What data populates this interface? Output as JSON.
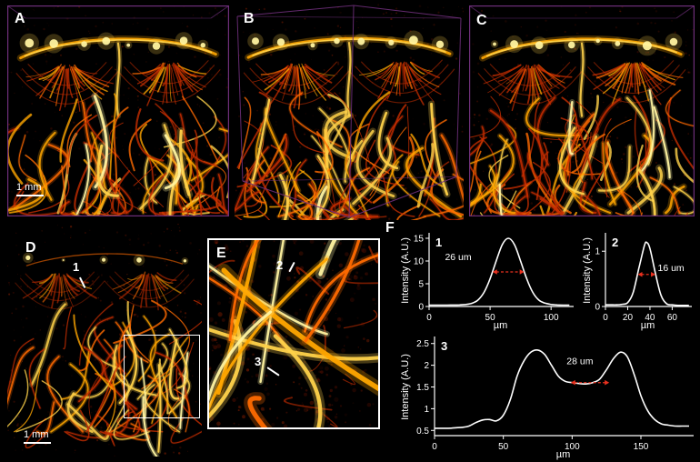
{
  "colors": {
    "background": "#000000",
    "wireframe": "#6e2f7a",
    "axis": "#ffffff",
    "curve": "#ffffff",
    "annotation": "#e8301e",
    "palette": [
      "#3a0a00",
      "#7a1500",
      "#c62d00",
      "#ff6a00",
      "#ffa600",
      "#ffd24a",
      "#fff3a0"
    ]
  },
  "figure": {
    "panel_a": {
      "label": "A",
      "scale_bar": "1 mm"
    },
    "panel_b": {
      "label": "B"
    },
    "panel_c": {
      "label": "C"
    },
    "panel_d": {
      "label": "D",
      "marker_1": "1",
      "scale_bar": "1 mm"
    },
    "panel_e": {
      "label": "E",
      "marker_2": "2",
      "marker_3": "3"
    },
    "panel_f": {
      "label": "F"
    }
  },
  "chart_data": [
    {
      "type": "line",
      "panel_label": "1",
      "xlabel": "µm",
      "ylabel": "Intensity (A.U.)",
      "xlim": [
        0,
        117
      ],
      "ylim": [
        0,
        15.8
      ],
      "xticks": [
        0,
        50,
        100
      ],
      "yticks": [
        0,
        5,
        10,
        15
      ],
      "x": [
        0,
        5,
        10,
        15,
        20,
        25,
        30,
        35,
        40,
        45,
        50,
        55,
        60,
        65,
        70,
        75,
        80,
        85,
        90,
        95,
        100,
        105,
        110,
        115
      ],
      "y": [
        0.3,
        0.3,
        0.3,
        0.3,
        0.32,
        0.35,
        0.45,
        0.7,
        1.4,
        3.1,
        6.1,
        10,
        13.6,
        15,
        13.6,
        10,
        6.1,
        3.1,
        1.4,
        0.75,
        0.45,
        0.35,
        0.3,
        0.3
      ],
      "annotation": {
        "label": "26 um",
        "x1": 52,
        "x2": 78,
        "y": 7.6,
        "label_x": 13,
        "label_y": 10.2
      }
    },
    {
      "type": "line",
      "panel_label": "2",
      "xlabel": "µm",
      "ylabel": "Intensity (A.U.)",
      "xlim": [
        0,
        76
      ],
      "ylim": [
        0,
        1.3
      ],
      "xticks": [
        0,
        20,
        40,
        60
      ],
      "yticks": [
        0,
        1
      ],
      "x": [
        0,
        5,
        10,
        15,
        20,
        25,
        30,
        35,
        37,
        40,
        45,
        50,
        55,
        60,
        65,
        70,
        75
      ],
      "y": [
        0.03,
        0.03,
        0.03,
        0.04,
        0.07,
        0.26,
        0.69,
        1.1,
        1.16,
        1.05,
        0.59,
        0.2,
        0.05,
        0.03,
        0.02,
        0.02,
        0.02
      ],
      "annotation": {
        "label": "16 um",
        "x1": 29,
        "x2": 45,
        "y": 0.58,
        "label_x": 47,
        "label_y": 0.64
      }
    },
    {
      "type": "line",
      "panel_label": "3",
      "xlabel": "µm",
      "ylabel": "Intensity (A.U.)",
      "xlim": [
        0,
        187
      ],
      "ylim": [
        0.38,
        2.62
      ],
      "xticks": [
        0,
        50,
        100,
        150
      ],
      "yticks": [
        0.5,
        1,
        1.5,
        2,
        2.5
      ],
      "x": [
        0,
        5,
        10,
        15,
        20,
        25,
        30,
        35,
        40,
        45,
        50,
        55,
        60,
        65,
        70,
        75,
        80,
        85,
        90,
        95,
        100,
        105,
        110,
        115,
        120,
        125,
        130,
        135,
        140,
        145,
        150,
        155,
        160,
        165,
        170,
        175,
        180,
        185
      ],
      "y": [
        0.55,
        0.55,
        0.55,
        0.56,
        0.57,
        0.6,
        0.68,
        0.74,
        0.75,
        0.72,
        0.85,
        1.2,
        1.75,
        2.1,
        2.3,
        2.35,
        2.25,
        2.0,
        1.75,
        1.63,
        1.6,
        1.58,
        1.57,
        1.6,
        1.68,
        1.9,
        2.15,
        2.3,
        2.2,
        1.8,
        1.3,
        0.95,
        0.75,
        0.65,
        0.62,
        0.6,
        0.6,
        0.6
      ],
      "annotation": {
        "label": "28 um",
        "x1": 99,
        "x2": 127,
        "y": 1.6,
        "label_x": 96,
        "label_y": 2.02
      }
    }
  ]
}
